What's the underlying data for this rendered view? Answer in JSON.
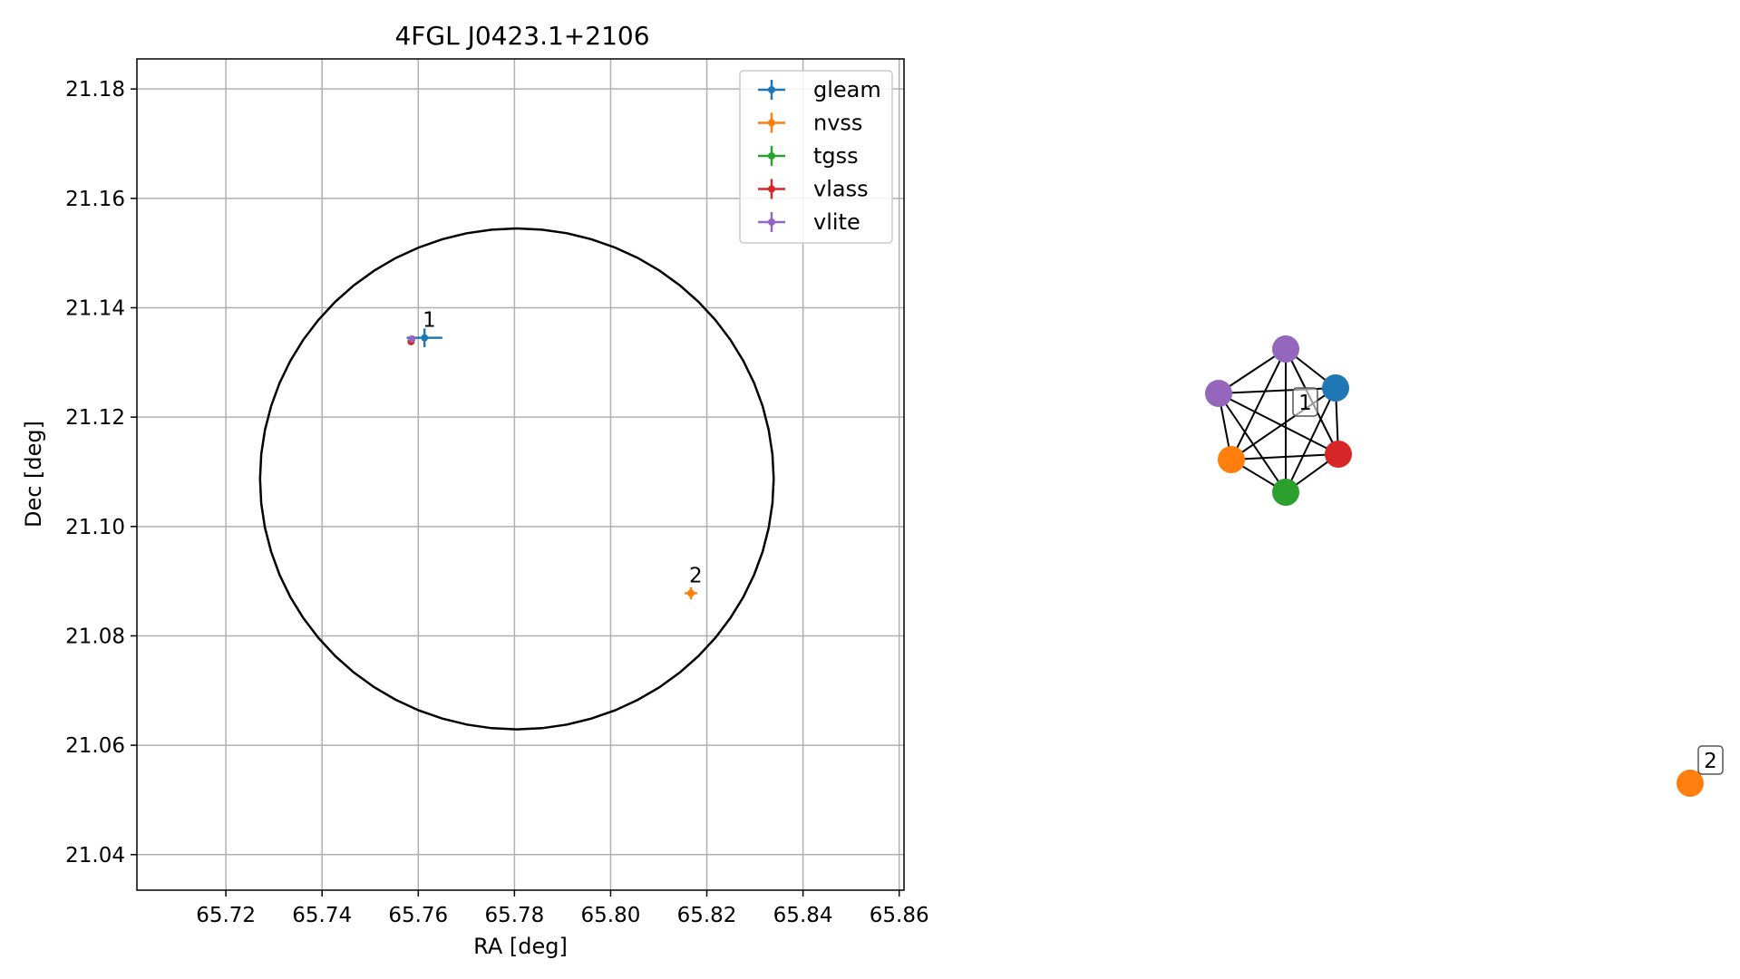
{
  "chart_data": [
    {
      "type": "scatter",
      "title": "4FGL J0423.1+2106",
      "xlabel": "RA [deg]",
      "ylabel": "Dec [deg]",
      "xlim": [
        65.7015,
        65.861
      ],
      "ylim": [
        21.0335,
        21.1855
      ],
      "xticks": [
        "65.72",
        "65.74",
        "65.76",
        "65.78",
        "65.80",
        "65.82",
        "65.84",
        "65.86"
      ],
      "xtick_values": [
        65.72,
        65.74,
        65.76,
        65.78,
        65.8,
        65.82,
        65.84,
        65.86
      ],
      "yticks": [
        "21.04",
        "21.06",
        "21.08",
        "21.10",
        "21.12",
        "21.14",
        "21.16",
        "21.18"
      ],
      "ytick_values": [
        21.04,
        21.06,
        21.08,
        21.1,
        21.12,
        21.14,
        21.16,
        21.18
      ],
      "grid": true,
      "legend_position": "top-right",
      "circle": {
        "center": [
          65.7805,
          21.1087
        ],
        "radius_ra": 0.0534,
        "radius_dec": 0.0458,
        "color": "#000000"
      },
      "series": [
        {
          "name": "gleam",
          "color": "#1f77b4",
          "points": [
            {
              "x": 65.7613,
              "y": 21.1345,
              "xerr": 0.0037,
              "yerr": 0.0017
            }
          ]
        },
        {
          "name": "nvss",
          "color": "#ff7f0e",
          "points": [
            {
              "x": 65.8167,
              "y": 21.0878,
              "xerr": 0.0013,
              "yerr": 0.0011
            }
          ]
        },
        {
          "name": "tgss",
          "color": "#2ca02c",
          "points": []
        },
        {
          "name": "vlass",
          "color": "#d62728",
          "points": [
            {
              "x": 65.7585,
              "y": 21.1338,
              "xerr": 0.0002,
              "yerr": 0.0002
            }
          ]
        },
        {
          "name": "vlite",
          "color": "#9467bd",
          "points": [
            {
              "x": 65.7587,
              "y": 21.1343,
              "xerr": 0.0005,
              "yerr": 0.0005
            }
          ]
        }
      ],
      "source_labels": [
        {
          "text": "1",
          "x": 65.7613,
          "y": 21.1345
        },
        {
          "text": "2",
          "x": 65.8167,
          "y": 21.0878
        }
      ]
    },
    {
      "type": "network",
      "nodes": [
        {
          "id": "n-vlite-top",
          "color": "#9467bd"
        },
        {
          "id": "n-gleam",
          "color": "#1f77b4"
        },
        {
          "id": "n-vlite-left",
          "color": "#9467bd"
        },
        {
          "id": "n-nvss",
          "color": "#ff7f0e"
        },
        {
          "id": "n-vlass",
          "color": "#d62728"
        },
        {
          "id": "n-tgss",
          "color": "#2ca02c"
        },
        {
          "id": "n-nvss-2",
          "color": "#ff7f0e"
        }
      ],
      "edges": [
        [
          "n-vlite-top",
          "n-gleam"
        ],
        [
          "n-vlite-top",
          "n-vlite-left"
        ],
        [
          "n-vlite-top",
          "n-nvss"
        ],
        [
          "n-vlite-top",
          "n-vlass"
        ],
        [
          "n-vlite-top",
          "n-tgss"
        ],
        [
          "n-gleam",
          "n-vlite-left"
        ],
        [
          "n-gleam",
          "n-nvss"
        ],
        [
          "n-gleam",
          "n-vlass"
        ],
        [
          "n-gleam",
          "n-tgss"
        ],
        [
          "n-vlite-left",
          "n-nvss"
        ],
        [
          "n-vlite-left",
          "n-vlass"
        ],
        [
          "n-vlite-left",
          "n-tgss"
        ],
        [
          "n-nvss",
          "n-vlass"
        ],
        [
          "n-nvss",
          "n-tgss"
        ],
        [
          "n-vlass",
          "n-tgss"
        ]
      ],
      "group_labels": [
        {
          "text": "1"
        },
        {
          "text": "2"
        }
      ]
    }
  ]
}
